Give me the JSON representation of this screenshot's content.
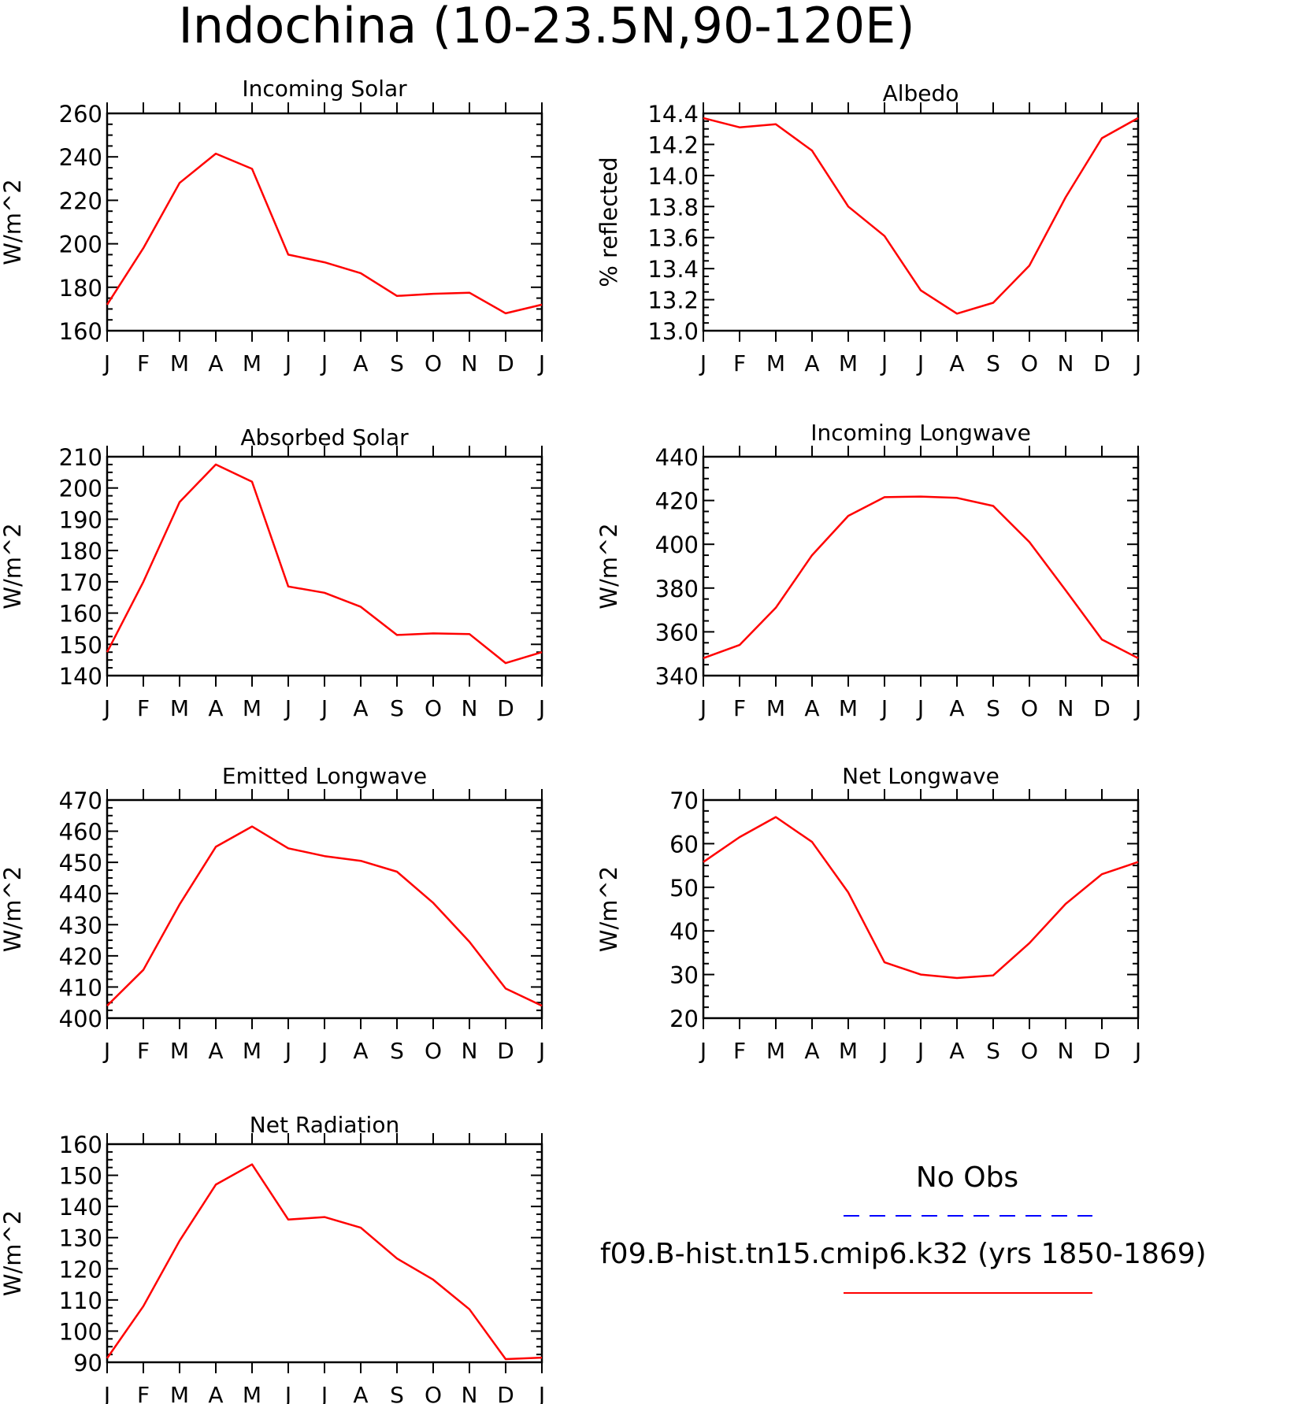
{
  "title": "Indochina (10-23.5N,90-120E)",
  "months": [
    "J",
    "F",
    "M",
    "A",
    "M",
    "J",
    "J",
    "A",
    "S",
    "O",
    "N",
    "D",
    "J"
  ],
  "colors": {
    "model": "#ff0000",
    "obs": "#0000ff",
    "axis": "#000000"
  },
  "legend": {
    "obs_label": "No Obs",
    "model_label": "f09.B-hist.tn15.cmip6.k32 (yrs 1850-1869)"
  },
  "chart_data": [
    {
      "id": "incoming-solar",
      "type": "line",
      "title": "Incoming Solar",
      "ylabel": "W/m^2",
      "ylim": [
        160,
        260
      ],
      "major_step": 20,
      "minor_step": 5,
      "tick_decimals": 0,
      "x": [
        "J",
        "F",
        "M",
        "A",
        "M",
        "J",
        "J",
        "A",
        "S",
        "O",
        "N",
        "D",
        "J"
      ],
      "series": [
        {
          "name": "f09.B-hist.tn15.cmip6.k32 (yrs 1850-1869)",
          "values": [
            172,
            198,
            228,
            241.5,
            234.5,
            195,
            191.5,
            186.5,
            176,
            177,
            177.5,
            168,
            172
          ]
        }
      ]
    },
    {
      "id": "albedo",
      "type": "line",
      "title": "Albedo",
      "ylabel": "% reflected",
      "ylim": [
        13.0,
        14.4
      ],
      "major_step": 0.2,
      "minor_step": 0.05,
      "tick_decimals": 1,
      "x": [
        "J",
        "F",
        "M",
        "A",
        "M",
        "J",
        "J",
        "A",
        "S",
        "O",
        "N",
        "D",
        "J"
      ],
      "series": [
        {
          "name": "f09.B-hist.tn15.cmip6.k32 (yrs 1850-1869)",
          "values": [
            14.37,
            14.31,
            14.33,
            14.16,
            13.8,
            13.61,
            13.26,
            13.11,
            13.18,
            13.42,
            13.86,
            14.24,
            14.37
          ]
        }
      ]
    },
    {
      "id": "absorbed-solar",
      "type": "line",
      "title": "Absorbed Solar",
      "ylabel": "W/m^2",
      "ylim": [
        140,
        210
      ],
      "major_step": 10,
      "minor_step": 2.5,
      "tick_decimals": 0,
      "x": [
        "J",
        "F",
        "M",
        "A",
        "M",
        "J",
        "J",
        "A",
        "S",
        "O",
        "N",
        "D",
        "J"
      ],
      "series": [
        {
          "name": "f09.B-hist.tn15.cmip6.k32 (yrs 1850-1869)",
          "values": [
            147.5,
            170,
            195.5,
            207.5,
            202,
            168.5,
            166.5,
            162,
            153,
            153.5,
            153.3,
            144,
            147.5
          ]
        }
      ]
    },
    {
      "id": "incoming-longwave",
      "type": "line",
      "title": "Incoming Longwave",
      "ylabel": "W/m^2",
      "ylim": [
        340,
        440
      ],
      "major_step": 20,
      "minor_step": 5,
      "tick_decimals": 0,
      "x": [
        "J",
        "F",
        "M",
        "A",
        "M",
        "J",
        "J",
        "A",
        "S",
        "O",
        "N",
        "D",
        "J"
      ],
      "series": [
        {
          "name": "f09.B-hist.tn15.cmip6.k32 (yrs 1850-1869)",
          "values": [
            348,
            354,
            371,
            395,
            413,
            421.5,
            421.8,
            421.2,
            417.5,
            401,
            379,
            356.5,
            348
          ]
        }
      ]
    },
    {
      "id": "emitted-longwave",
      "type": "line",
      "title": "Emitted Longwave",
      "ylabel": "W/m^2",
      "ylim": [
        400,
        470
      ],
      "major_step": 10,
      "minor_step": 2.5,
      "tick_decimals": 0,
      "x": [
        "J",
        "F",
        "M",
        "A",
        "M",
        "J",
        "J",
        "A",
        "S",
        "O",
        "N",
        "D",
        "J"
      ],
      "series": [
        {
          "name": "f09.B-hist.tn15.cmip6.k32 (yrs 1850-1869)",
          "values": [
            404,
            415.5,
            436.5,
            455,
            461.5,
            454.5,
            452,
            450.5,
            447,
            437,
            424.5,
            409.5,
            404
          ]
        }
      ]
    },
    {
      "id": "net-longwave",
      "type": "line",
      "title": "Net Longwave",
      "ylabel": "W/m^2",
      "ylim": [
        20,
        70
      ],
      "major_step": 10,
      "minor_step": 2.5,
      "tick_decimals": 0,
      "x": [
        "J",
        "F",
        "M",
        "A",
        "M",
        "J",
        "J",
        "A",
        "S",
        "O",
        "N",
        "D",
        "J"
      ],
      "series": [
        {
          "name": "f09.B-hist.tn15.cmip6.k32 (yrs 1850-1869)",
          "values": [
            55.8,
            61.5,
            66.1,
            60.4,
            48.8,
            32.8,
            30,
            29.2,
            29.8,
            37.2,
            46.2,
            53,
            55.8
          ]
        }
      ]
    },
    {
      "id": "net-radiation",
      "type": "line",
      "title": "Net Radiation",
      "ylabel": "W/m^2",
      "ylim": [
        90,
        160
      ],
      "major_step": 10,
      "minor_step": 2.5,
      "tick_decimals": 0,
      "x": [
        "J",
        "F",
        "M",
        "A",
        "M",
        "J",
        "J",
        "A",
        "S",
        "O",
        "N",
        "D",
        "J"
      ],
      "series": [
        {
          "name": "f09.B-hist.tn15.cmip6.k32 (yrs 1850-1869)",
          "values": [
            91.3,
            108,
            129,
            147,
            153.5,
            135.8,
            136.6,
            133.2,
            123.3,
            116.5,
            107,
            91,
            91.5
          ]
        }
      ]
    }
  ]
}
